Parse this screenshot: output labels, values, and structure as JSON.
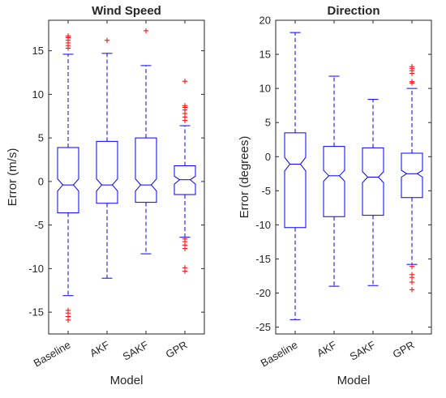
{
  "colors": {
    "box": "#0000ff",
    "outlier": "#ff0000",
    "axis": "#262626"
  },
  "chart_data": [
    {
      "type": "box",
      "title": "Wind Speed",
      "xlabel": "Model",
      "ylabel": "Error (m/s)",
      "ylim": [
        -17.5,
        18.5
      ],
      "yticks": [
        -15,
        -10,
        -5,
        0,
        5,
        10,
        15
      ],
      "categories": [
        "Baseline",
        "AKF",
        "SAKF",
        "GPR"
      ],
      "boxes": [
        {
          "category": "Baseline",
          "whisker_low": -13.1,
          "q1": -3.6,
          "median": -0.4,
          "q3": 3.9,
          "whisker_high": 14.6,
          "notch": [
            -1.1,
            0.3
          ],
          "outliers": [
            -15.9,
            -15.5,
            -15.1,
            -14.8,
            15.3,
            15.6,
            15.9,
            16.2,
            16.5,
            16.7
          ]
        },
        {
          "category": "AKF",
          "whisker_low": -11.1,
          "q1": -2.5,
          "median": -0.4,
          "q3": 4.6,
          "whisker_high": 14.7,
          "notch": [
            -1.1,
            0.3
          ],
          "outliers": [
            16.2
          ]
        },
        {
          "category": "SAKF",
          "whisker_low": -8.3,
          "q1": -2.4,
          "median": -0.4,
          "q3": 5.0,
          "whisker_high": 13.3,
          "notch": [
            -1.1,
            0.3
          ],
          "outliers": [
            17.3
          ]
        },
        {
          "category": "GPR",
          "whisker_low": -6.4,
          "q1": -1.5,
          "median": 0.2,
          "q3": 1.8,
          "whisker_high": 6.4,
          "notch": [
            -0.3,
            0.6
          ],
          "outliers": [
            -10.3,
            -9.9,
            -7.7,
            -7.3,
            -6.9,
            -6.6,
            7.0,
            7.4,
            7.8,
            8.2,
            8.5,
            8.7,
            11.5
          ]
        }
      ]
    },
    {
      "type": "box",
      "title": "Direction",
      "xlabel": "Model",
      "ylabel": "Error (degrees)",
      "ylim": [
        -26,
        20
      ],
      "yticks": [
        -25,
        -20,
        -15,
        -10,
        -5,
        0,
        5,
        10,
        15,
        20
      ],
      "categories": [
        "Baseline",
        "AKF",
        "SAKF",
        "GPR"
      ],
      "boxes": [
        {
          "category": "Baseline",
          "whisker_low": -23.9,
          "q1": -10.4,
          "median": -1.1,
          "q3": 3.5,
          "whisker_high": 18.2,
          "notch": [
            -2.1,
            -0.1
          ],
          "outliers": []
        },
        {
          "category": "AKF",
          "whisker_low": -19.0,
          "q1": -8.8,
          "median": -2.8,
          "q3": 1.5,
          "whisker_high": 11.8,
          "notch": [
            -3.6,
            -2.0
          ],
          "outliers": []
        },
        {
          "category": "SAKF",
          "whisker_low": -18.9,
          "q1": -8.6,
          "median": -3.0,
          "q3": 1.3,
          "whisker_high": 8.4,
          "notch": [
            -3.8,
            -2.2
          ],
          "outliers": []
        },
        {
          "category": "GPR",
          "whisker_low": -15.8,
          "q1": -6.0,
          "median": -2.5,
          "q3": 0.5,
          "whisker_high": 10.0,
          "notch": [
            -3.0,
            -2.0
          ],
          "outliers": [
            -19.5,
            -18.4,
            -17.7,
            -17.3,
            -16.1,
            10.8,
            11.0,
            12.2,
            12.6,
            12.9,
            13.2
          ]
        }
      ]
    }
  ]
}
